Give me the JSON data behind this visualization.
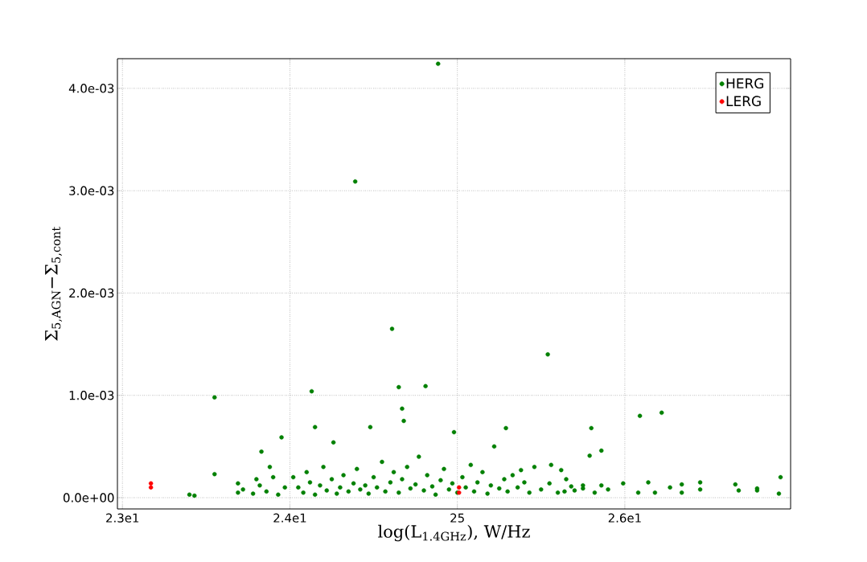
{
  "chart_data": {
    "type": "scatter",
    "xlabel": "log(L$_{1.4GHz}$), W/Hz",
    "ylabel": "Σ$_{5,AGN}$−Σ$_{5,cont}$",
    "grid": true,
    "legend": "top right",
    "xlim": [
      22.97,
      26.99
    ],
    "ylim": [
      -0.00011,
      0.00429
    ],
    "xticks": [
      {
        "value": 23,
        "label": "2.3e1"
      },
      {
        "value": 24,
        "label": "2.4e1"
      },
      25,
      {
        "value": 26,
        "label": "2.6e1"
      }
    ],
    "yticks": [
      {
        "value": 0,
        "label": "0.0e+00"
      },
      {
        "value": 0.001,
        "label": "1.0e-03"
      },
      {
        "value": 0.002,
        "label": "2.0e-03"
      },
      {
        "value": 0.003,
        "label": "3.0e-03"
      },
      {
        "value": 0.004,
        "label": "4.0e-03"
      }
    ],
    "series": [
      {
        "name": "HERG",
        "color": "#008000",
        "x": [
          24.885,
          24.39,
          24.61,
          25.54,
          23.55,
          24.13,
          24.65,
          24.81,
          24.67,
          24.68,
          24.15,
          24.48,
          24.98,
          25.29,
          25.8,
          26.22,
          26.09,
          23.95,
          24.26,
          23.83,
          23.55,
          23.4,
          23.43,
          23.69,
          23.69,
          26.93,
          26.92,
          26.79,
          26.79,
          26.68,
          26.66,
          26.45,
          26.45,
          26.34,
          26.34,
          26.18,
          26.27,
          26.14,
          26.08,
          25.99,
          25.9,
          25.86,
          25.82,
          25.75,
          25.68,
          25.64,
          25.79,
          25.86,
          25.56,
          25.62,
          25.38,
          24.02,
          24.05,
          24.08,
          24.1,
          24.12,
          24.15,
          24.18,
          24.2,
          24.22,
          24.25,
          24.28,
          24.3,
          24.32,
          24.35,
          24.38,
          24.4,
          24.42,
          24.45,
          24.47,
          24.5,
          24.52,
          24.55,
          24.57,
          24.6,
          24.62,
          24.65,
          24.67,
          24.7,
          24.72,
          24.75,
          24.77,
          24.8,
          24.82,
          24.85,
          24.87,
          24.9,
          24.92,
          24.95,
          24.97,
          25.0,
          25.03,
          25.05,
          25.08,
          25.1,
          25.12,
          25.15,
          25.18,
          25.2,
          25.22,
          25.25,
          25.28,
          25.3,
          25.33,
          25.36,
          25.4,
          25.43,
          25.46,
          25.5,
          25.55,
          25.6,
          25.65,
          25.7,
          25.75,
          23.72,
          23.78,
          23.82,
          23.86,
          23.9,
          23.93,
          23.97,
          23.88,
          23.8
        ],
        "values": [
          0.00424,
          0.00309,
          0.00165,
          0.0014,
          0.00098,
          0.00104,
          0.00108,
          0.00109,
          0.00087,
          0.00075,
          0.00069,
          0.00069,
          0.00064,
          0.00068,
          0.00068,
          0.00083,
          0.0008,
          0.00059,
          0.00054,
          0.00045,
          0.00023,
          3e-05,
          2e-05,
          0.00014,
          5e-05,
          0.0002,
          4e-05,
          9e-05,
          7e-05,
          7e-05,
          0.00013,
          8e-05,
          0.00015,
          5e-05,
          0.00013,
          5e-05,
          0.0001,
          0.00015,
          5e-05,
          0.00014,
          8e-05,
          0.00012,
          5e-05,
          9e-05,
          0.00011,
          6e-05,
          0.00041,
          0.00046,
          0.00032,
          0.00027,
          0.00027,
          0.0002,
          0.0001,
          5e-05,
          0.00025,
          0.00015,
          3e-05,
          0.00012,
          0.0003,
          7e-05,
          0.00018,
          4e-05,
          0.0001,
          0.00022,
          6e-05,
          0.00014,
          0.00028,
          8e-05,
          0.00012,
          4e-05,
          0.0002,
          0.0001,
          0.00035,
          6e-05,
          0.00015,
          0.00025,
          5e-05,
          0.00018,
          0.0003,
          9e-05,
          0.00013,
          0.0004,
          7e-05,
          0.00022,
          0.00011,
          3e-05,
          0.00017,
          0.00028,
          8e-05,
          0.00014,
          5e-05,
          0.0002,
          0.0001,
          0.00032,
          6e-05,
          0.00015,
          0.00025,
          4e-05,
          0.00012,
          0.0005,
          9e-05,
          0.00018,
          6e-05,
          0.00022,
          0.0001,
          0.00015,
          5e-05,
          0.0003,
          8e-05,
          0.00014,
          5e-05,
          0.00018,
          7e-05,
          0.00012,
          8e-05,
          4e-05,
          0.00012,
          6e-05,
          0.0002,
          3e-05,
          0.0001,
          0.0003,
          0.00018
        ]
      },
      {
        "name": "LERG",
        "color": "#ff0000",
        "x": [
          23.17,
          23.17,
          25.01,
          25.01
        ],
        "values": [
          0.00014,
          0.0001,
          0.0001,
          5e-05
        ]
      }
    ]
  }
}
